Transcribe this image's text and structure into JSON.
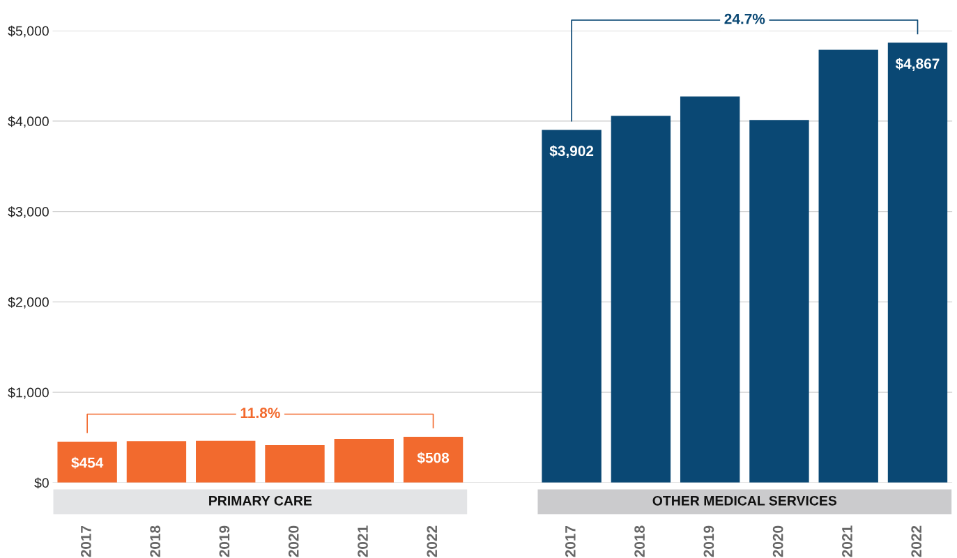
{
  "chart_data": {
    "type": "bar",
    "categories": [
      "2017",
      "2018",
      "2019",
      "2020",
      "2021",
      "2022",
      null,
      "2017",
      "2018",
      "2019",
      "2020",
      "2021",
      "2022"
    ],
    "series": [
      {
        "name": "PRIMARY CARE",
        "color": "#f26a2e",
        "values": [
          454,
          460,
          464,
          416,
          484,
          508,
          null,
          null,
          null,
          null,
          null,
          null,
          null
        ],
        "value_labels": [
          "$454",
          null,
          null,
          null,
          null,
          "$508",
          null,
          null,
          null,
          null,
          null,
          null,
          null
        ]
      },
      {
        "name": "OTHER MEDICAL SERVICES",
        "color": "#0a4874",
        "values": [
          null,
          null,
          null,
          null,
          null,
          null,
          null,
          3902,
          4059,
          4272,
          4013,
          4788,
          4867
        ],
        "value_labels": [
          null,
          null,
          null,
          null,
          null,
          null,
          null,
          "$3,902",
          null,
          null,
          null,
          null,
          "$4,867"
        ]
      }
    ],
    "annotations": [
      "11.8%",
      "24.7%"
    ],
    "ylim": [
      0,
      5000
    ],
    "yticks": [
      {
        "value": 0,
        "label": "$0"
      },
      {
        "value": 1000,
        "label": "$1,000"
      },
      {
        "value": 2000,
        "label": "$2,000"
      },
      {
        "value": 3000,
        "label": "$3,000"
      },
      {
        "value": 4000,
        "label": "$4,000"
      },
      {
        "value": 5000,
        "label": "$5,000"
      }
    ],
    "grid": "y"
  }
}
